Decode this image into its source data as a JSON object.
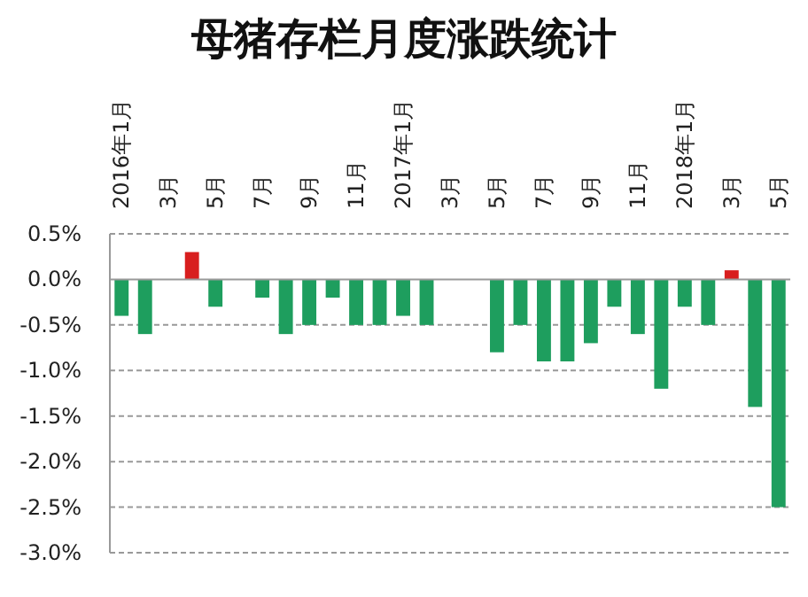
{
  "chart_data": {
    "type": "bar",
    "title": "母猪存栏月度涨跌统计",
    "categories": [
      "2016年1月",
      null,
      "3月",
      null,
      "5月",
      null,
      "7月",
      null,
      "9月",
      null,
      "11月",
      null,
      "2017年1月",
      null,
      "3月",
      null,
      "5月",
      null,
      "7月",
      null,
      "9月",
      null,
      "11月",
      null,
      "2018年1月",
      null,
      "3月",
      null,
      "5月"
    ],
    "values": [
      -0.4,
      -0.6,
      0,
      0.3,
      -0.3,
      0,
      -0.2,
      -0.6,
      -0.5,
      -0.2,
      -0.5,
      -0.5,
      -0.4,
      -0.5,
      0,
      0,
      -0.8,
      -0.5,
      -0.9,
      -0.9,
      -0.7,
      -0.3,
      -0.6,
      -1.2,
      -0.3,
      -0.5,
      0.1,
      -1.4,
      -2.5
    ],
    "colors": [
      "#1e9e5e",
      "#1e9e5e",
      "#1e9e5e",
      "#d81e1e",
      "#1e9e5e",
      "#1e9e5e",
      "#1e9e5e",
      "#1e9e5e",
      "#1e9e5e",
      "#1e9e5e",
      "#1e9e5e",
      "#1e9e5e",
      "#1e9e5e",
      "#1e9e5e",
      "#1e9e5e",
      "#1e9e5e",
      "#1e9e5e",
      "#1e9e5e",
      "#1e9e5e",
      "#1e9e5e",
      "#1e9e5e",
      "#1e9e5e",
      "#1e9e5e",
      "#1e9e5e",
      "#1e9e5e",
      "#1e9e5e",
      "#d81e1e",
      "#1e9e5e",
      "#1e9e5e"
    ],
    "ylim": [
      -3.0,
      0.5
    ],
    "yticks": [
      {
        "value": 0.5,
        "label": "0.5%"
      },
      {
        "value": 0,
        "label": "0.0%"
      },
      {
        "value": -0.5,
        "label": "-0.5%"
      },
      {
        "value": -1.0,
        "label": "-1.0%"
      },
      {
        "value": -1.5,
        "label": "-1.5%"
      },
      {
        "value": -2.0,
        "label": "-2.0%"
      },
      {
        "value": -2.5,
        "label": "-2.5%"
      },
      {
        "value": -3.0,
        "label": "-3.0%"
      }
    ],
    "grid": "y"
  }
}
